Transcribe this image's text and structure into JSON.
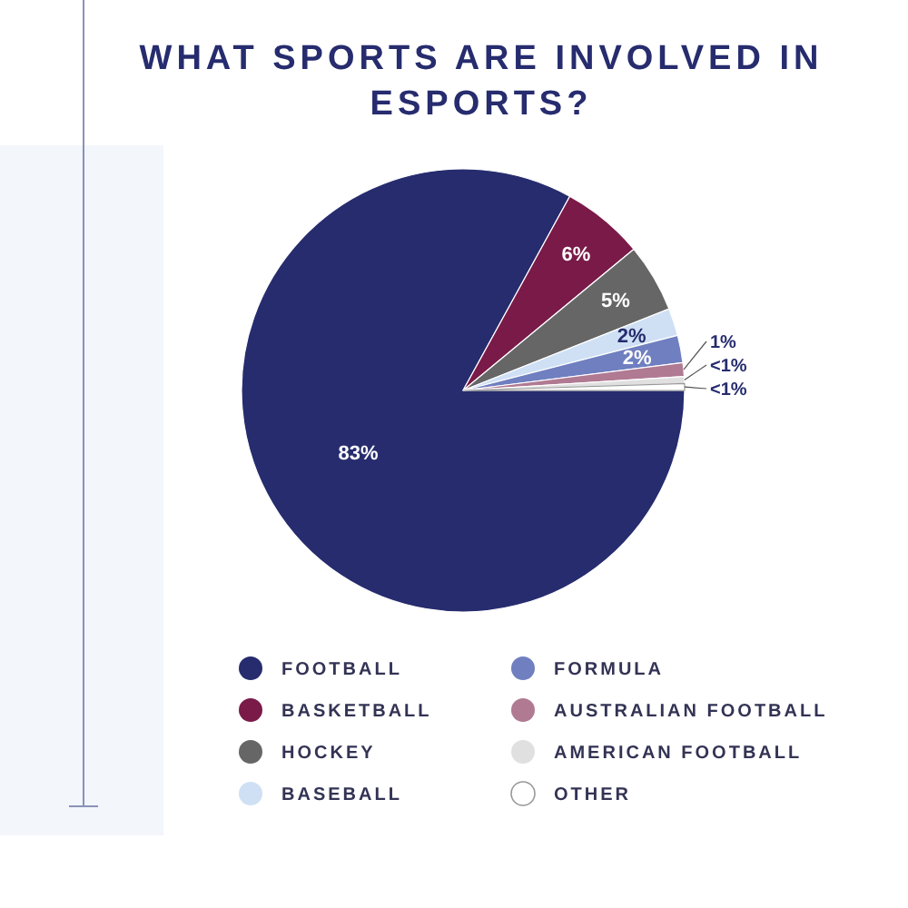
{
  "chart_data": {
    "type": "pie",
    "title": "WHAT SPORTS ARE INVOLVED IN ESPORTS?",
    "categories": [
      "FOOTBALL",
      "BASKETBALL",
      "HOCKEY",
      "BASEBALL",
      "FORMULA",
      "AUSTRALIAN FOOTBALL",
      "AMERICAN FOOTBALL",
      "OTHER"
    ],
    "values": [
      83,
      6,
      5,
      2,
      2,
      1,
      0.5,
      0.5
    ],
    "value_labels": [
      "83%",
      "6%",
      "5%",
      "2%",
      "2%",
      "1%",
      "<1%",
      "<1%"
    ],
    "colors": [
      "#262c6e",
      "#7a1a48",
      "#666666",
      "#cfe0f5",
      "#6f7fc0",
      "#b07a92",
      "#e0e0e0",
      "#ffffff"
    ],
    "legend": "bottom"
  }
}
